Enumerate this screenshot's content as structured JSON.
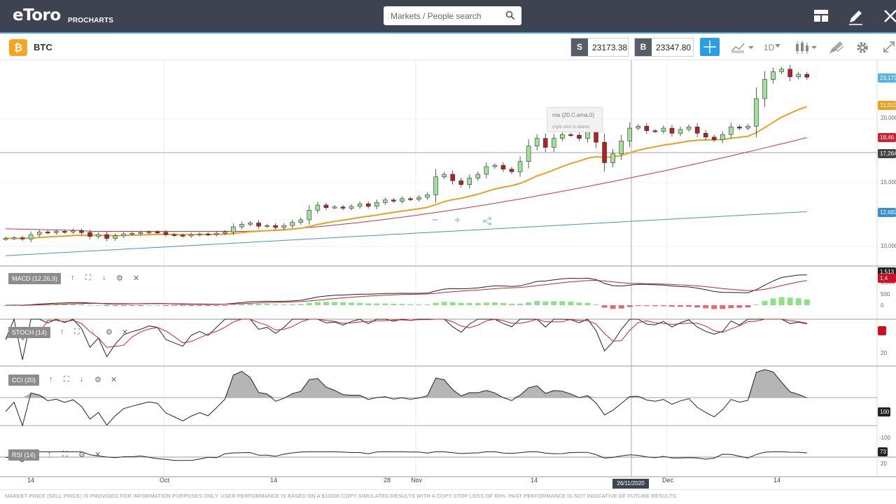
{
  "header": {
    "logo_text": "eToro",
    "product": "PROCHARTS",
    "search_placeholder": "Markets / People search"
  },
  "toolbar": {
    "symbol": "BTC",
    "sell_label": "S",
    "sell_price": "23173.38",
    "buy_label": "B",
    "buy_price": "23347.80",
    "timeframe": "1D"
  },
  "colors": {
    "bull": "#9fe09a",
    "bear": "#b22222",
    "ema20": "#e8a020",
    "ma_red": "#cc3344",
    "ma_blue": "#4a8fc8",
    "accent": "#2b9fe3"
  },
  "price_axis": {
    "ticks": [
      "20,000",
      "15,000",
      "10,000"
    ],
    "tags": [
      {
        "text": "23,173",
        "color": "#5ab0e0"
      },
      {
        "text": "21,022",
        "color": "#e8a020"
      },
      {
        "text": "18,46",
        "color": "#cc2233"
      },
      {
        "text": "17,264",
        "color": "#444"
      },
      {
        "text": "12,682",
        "color": "#3a8fcf"
      }
    ]
  },
  "tooltip": {
    "line1": "ma (20,C,ema,0)",
    "line2": "(right click to delete)"
  },
  "indicators": {
    "macd": {
      "label": "MACD (12,26,9)",
      "ticks": [
        "1,000",
        "500",
        "0"
      ],
      "tag1": "1,513",
      "tag2": "1,4"
    },
    "stoch": {
      "label": "STOCH (14)",
      "ticks": [
        "20"
      ]
    },
    "cci": {
      "label": "CCI (20)",
      "ticks": [
        "100",
        "-100"
      ],
      "tag": "100"
    },
    "rsi": {
      "label": "RSI (14)",
      "ticks": [
        "20"
      ],
      "tag": "73"
    }
  },
  "x_axis": {
    "labels": [
      "14",
      "Oct",
      "14",
      "28",
      "Nov",
      "14",
      "Dec",
      "14"
    ],
    "crosshair_date": "26/11/2020"
  },
  "chart_data": {
    "type": "candlestick",
    "symbol": "BTC",
    "closes": [
      10600,
      10650,
      10550,
      10900,
      11100,
      11050,
      11150,
      11100,
      11200,
      11050,
      10750,
      10900,
      10600,
      10800,
      10950,
      11000,
      11050,
      11100,
      11080,
      10900,
      10850,
      10800,
      10900,
      10950,
      10900,
      11000,
      11100,
      11500,
      11700,
      11800,
      11550,
      11600,
      11450,
      11600,
      11850,
      12050,
      12800,
      13200,
      13000,
      13050,
      12950,
      13100,
      13300,
      13100,
      13400,
      13600,
      13500,
      13700,
      13650,
      13800,
      14000,
      15400,
      15600,
      15100,
      14800,
      15300,
      15600,
      16200,
      16300,
      16000,
      15800,
      16600,
      17800,
      18400,
      17700,
      18400,
      18700,
      18650,
      18400,
      19000,
      18100,
      16500,
      17200,
      18200,
      19200,
      19350,
      19000,
      18950,
      19200,
      18800,
      19100,
      19300,
      18800,
      18500,
      18300,
      18700,
      19300,
      19200,
      19350,
      21500,
      23000,
      23600,
      23800,
      23200,
      23400,
      23173
    ],
    "overlays": [
      {
        "type": "ema",
        "period": 20,
        "last": 21022
      },
      {
        "type": "ma",
        "last": 18460
      },
      {
        "type": "ma",
        "last": 12682
      }
    ],
    "ylim": [
      8500,
      24500
    ]
  }
}
